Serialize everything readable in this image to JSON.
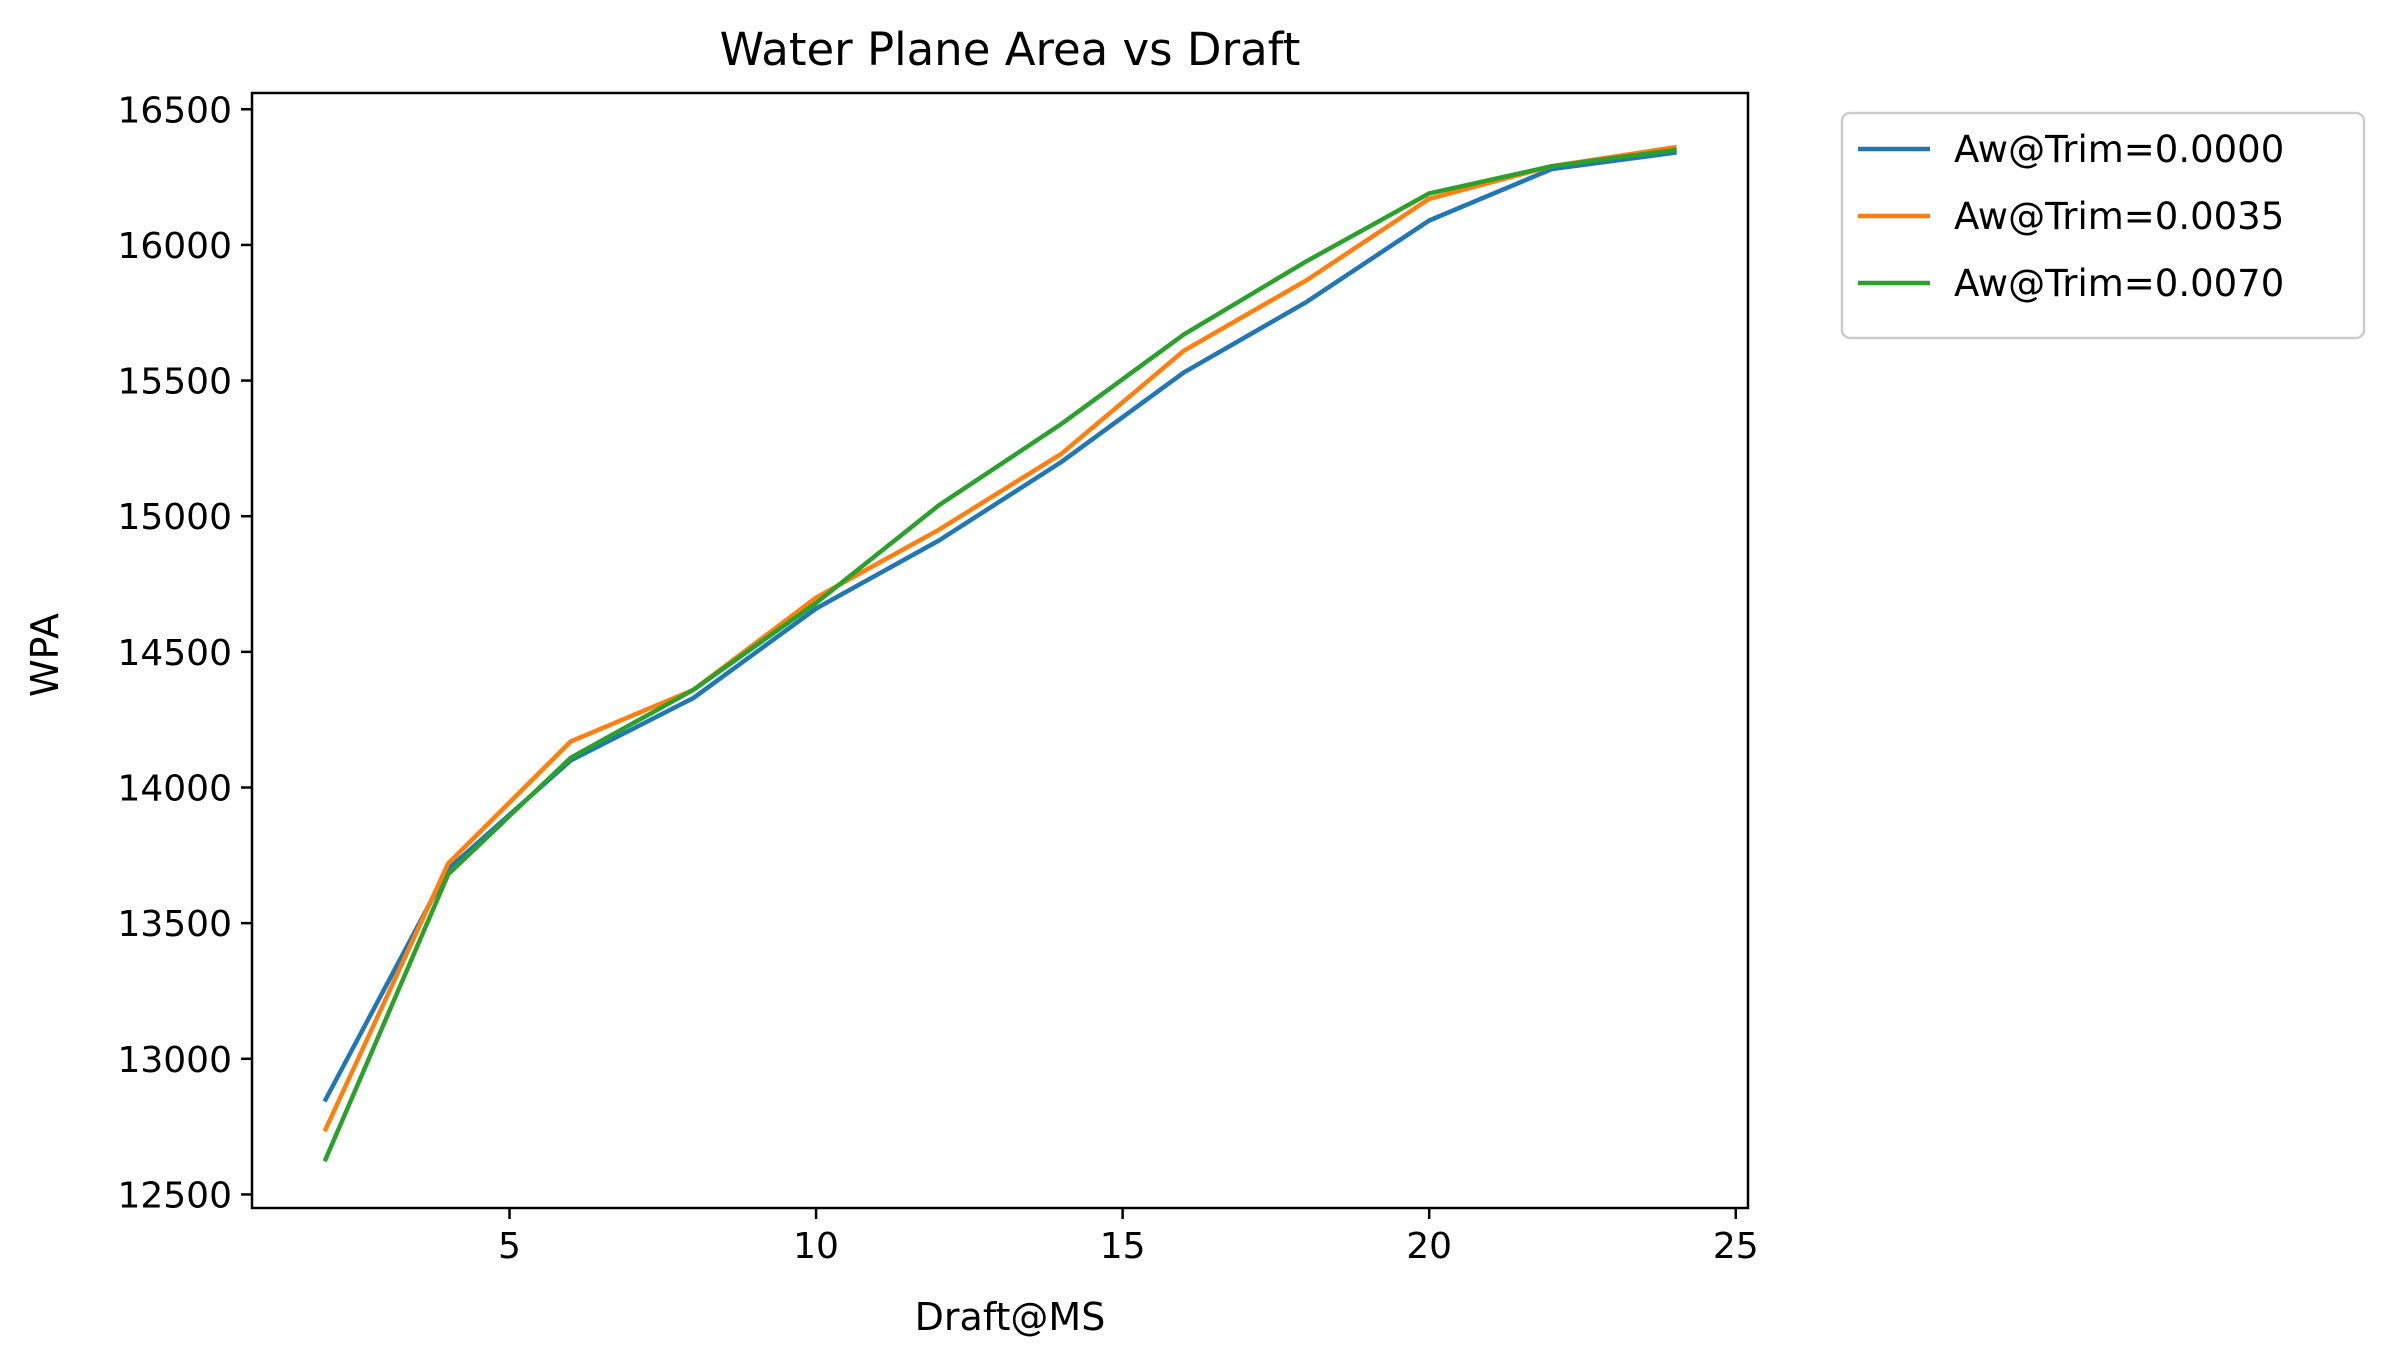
{
  "chart_data": {
    "type": "line",
    "title": "Water Plane Area vs Draft",
    "xlabel": "Draft@MS",
    "ylabel": "WPA",
    "xlim": [
      0.8,
      25.2
    ],
    "ylim": [
      12450,
      16560
    ],
    "xticks": [
      5,
      10,
      15,
      20,
      25
    ],
    "yticks": [
      12500,
      13000,
      13500,
      14000,
      14500,
      15000,
      15500,
      16000,
      16500
    ],
    "grid": false,
    "legend_position": "outside-top-right",
    "x": [
      2,
      4,
      6,
      8,
      10,
      12,
      14,
      16,
      18,
      20,
      22,
      24
    ],
    "series": [
      {
        "name": "Aw@Trim=0.0000",
        "color": "#1f77b4",
        "values": [
          12850,
          13700,
          14100,
          14330,
          14660,
          14910,
          15200,
          15530,
          15790,
          16090,
          16280,
          16340
        ]
      },
      {
        "name": "Aw@Trim=0.0035",
        "color": "#ff7f0e",
        "values": [
          12740,
          13720,
          14170,
          14360,
          14700,
          14950,
          15230,
          15610,
          15870,
          16170,
          16290,
          16360
        ]
      },
      {
        "name": "Aw@Trim=0.0070",
        "color": "#2ca02c",
        "values": [
          12630,
          13680,
          14110,
          14360,
          14680,
          15040,
          15340,
          15670,
          15940,
          16190,
          16290,
          16350
        ]
      }
    ]
  }
}
